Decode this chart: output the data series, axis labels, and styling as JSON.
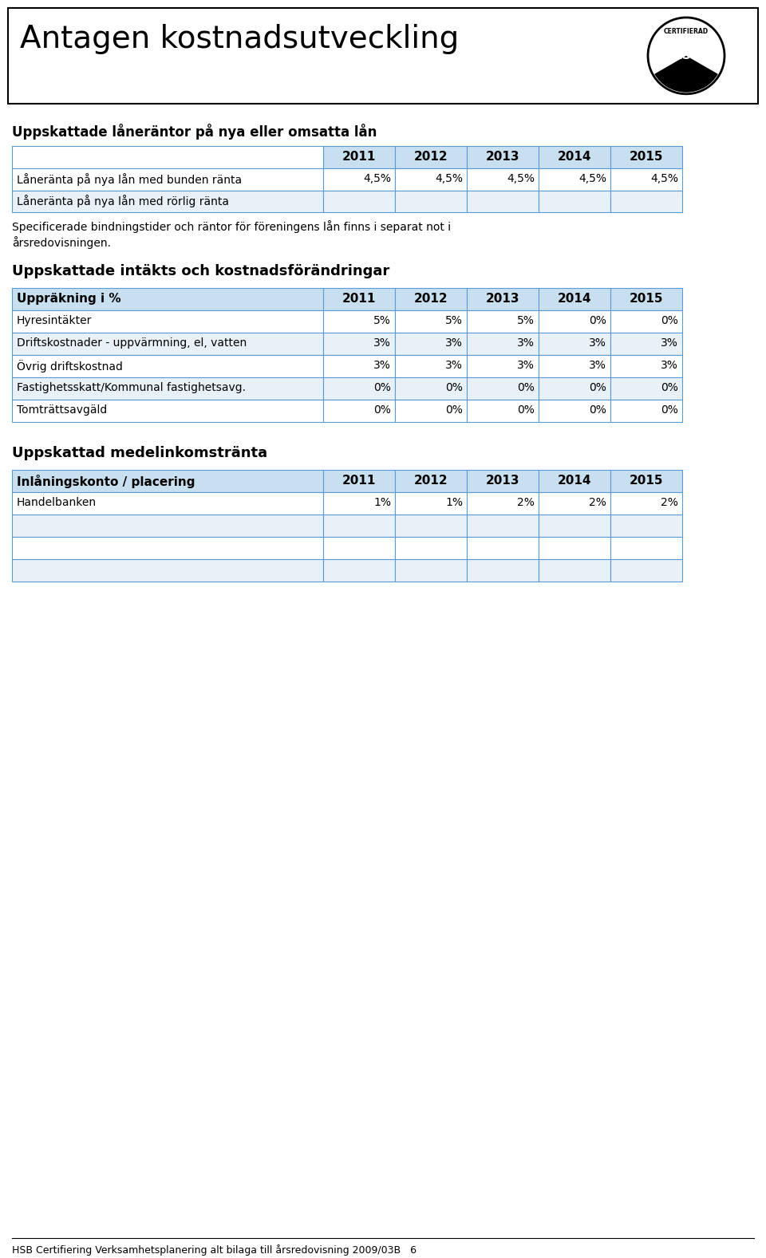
{
  "title": "Antagen kostnadsutveckling",
  "section1_heading": "Uppskattade låneräntor på nya eller omsatta lån",
  "table1_header": [
    "",
    "2011",
    "2012",
    "2013",
    "2014",
    "2015"
  ],
  "table1_rows": [
    [
      "Låneränta på nya lån med bunden ränta",
      "4,5%",
      "4,5%",
      "4,5%",
      "4,5%",
      "4,5%"
    ],
    [
      "Låneränta på nya lån med rörlig ränta",
      "",
      "",
      "",
      "",
      ""
    ]
  ],
  "table1_note": "Specificerade bindningstider och räntor för föreningens lån finns i separat not i\nårsredovisningen.",
  "section2_heading": "Uppskattade intäkts och kostnadsförändringar",
  "table2_header": [
    "Uppräkning i %",
    "2011",
    "2012",
    "2013",
    "2014",
    "2015"
  ],
  "table2_rows": [
    [
      "Hyresintäkter",
      "5%",
      "5%",
      "5%",
      "0%",
      "0%"
    ],
    [
      "Driftskostnader - uppvärmning, el, vatten",
      "3%",
      "3%",
      "3%",
      "3%",
      "3%"
    ],
    [
      "Övrig driftskostnad",
      "3%",
      "3%",
      "3%",
      "3%",
      "3%"
    ],
    [
      "Fastighetsskatt/Kommunal fastighetsavg.",
      "0%",
      "0%",
      "0%",
      "0%",
      "0%"
    ],
    [
      "Tomträttsavgäld",
      "0%",
      "0%",
      "0%",
      "0%",
      "0%"
    ]
  ],
  "section3_heading": "Uppskattad medelinkomstränta",
  "table3_header": [
    "Inlåningskonto / placering",
    "2011",
    "2012",
    "2013",
    "2014",
    "2015"
  ],
  "table3_rows": [
    [
      "Handelbanken",
      "1%",
      "1%",
      "2%",
      "2%",
      "2%"
    ],
    [
      "",
      "",
      "",
      "",
      "",
      ""
    ],
    [
      "",
      "",
      "",
      "",
      "",
      ""
    ],
    [
      "",
      "",
      "",
      "",
      "",
      ""
    ]
  ],
  "footer": "HSB Certifiering Verksamhetsplanering alt bilaga till årsredovisning 2009/03B   6",
  "header_bg": "#c8dff0",
  "alt_row_bg": "#e8f0f8",
  "white_bg": "#ffffff",
  "border_color": "#5b9bd5",
  "text_color": "#000000",
  "title_color": "#000000",
  "heading_color": "#000000",
  "bg_color": "#ffffff"
}
